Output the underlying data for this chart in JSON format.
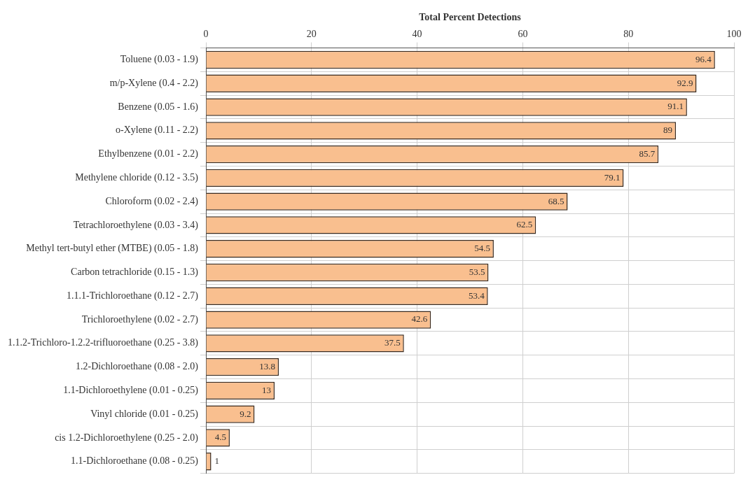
{
  "chart_data": {
    "type": "bar",
    "orientation": "horizontal",
    "xlabel": "Total Percent Detections",
    "categories": [
      "Toluene (0.03 - 1.9)",
      "m/p-Xylene (0.4 - 2.2)",
      "Benzene (0.05 - 1.6)",
      "o-Xylene (0.11 - 2.2)",
      "Ethylbenzene (0.01 - 2.2)",
      "Methylene chloride (0.12 - 3.5)",
      "Chloroform (0.02 - 2.4)",
      "Tetrachloroethylene (0.03 - 3.4)",
      "Methyl tert-butyl ether (MTBE) (0.05 - 1.8)",
      "Carbon tetrachloride (0.15 - 1.3)",
      "1.1.1-Trichloroethane (0.12 - 2.7)",
      "Trichloroethylene (0.02 - 2.7)",
      "1.1.2-Trichloro-1.2.2-trifluoroethane (0.25 - 3.8)",
      "1.2-Dichloroethane (0.08 - 2.0)",
      "1.1-Dichloroethylene (0.01 - 0.25)",
      "Vinyl chloride (0.01 - 0.25)",
      "cis 1.2-Dichloroethylene (0.25 - 2.0)",
      "1.1-Dichloroethane (0.08 - 0.25)"
    ],
    "values": [
      96.4,
      92.9,
      91.1,
      89,
      85.7,
      79.1,
      68.5,
      62.5,
      54.5,
      53.5,
      53.4,
      42.6,
      37.5,
      13.8,
      13,
      9.2,
      4.5,
      1
    ],
    "color": "#f9bf8f",
    "xlim": [
      0,
      100
    ],
    "xticks": [
      0,
      20,
      40,
      60,
      80,
      100
    ],
    "grid": true,
    "data_labels": true,
    "legend": false
  }
}
